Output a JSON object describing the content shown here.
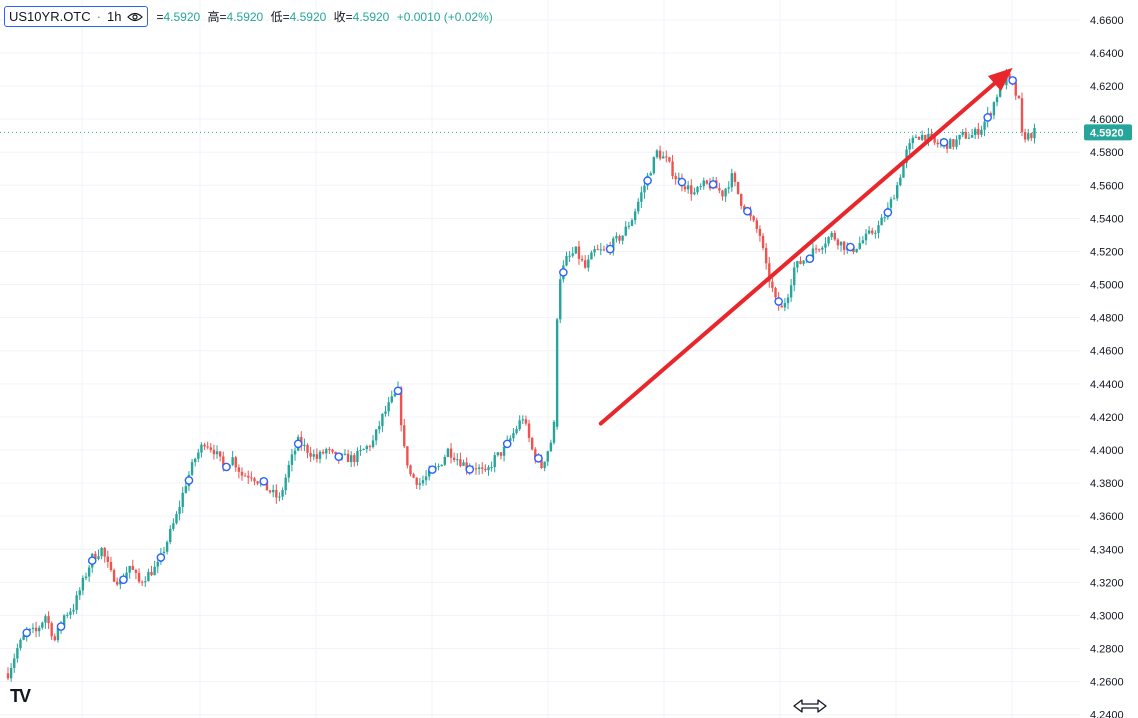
{
  "header": {
    "symbol": "US10YR.OTC",
    "separator": "·",
    "interval": "1h",
    "ohlc": [
      {
        "label": "=",
        "value": "4.5920"
      },
      {
        "label": "高=",
        "value": "4.5920"
      },
      {
        "label": "低=",
        "value": "4.5920"
      },
      {
        "label": "收=",
        "value": "4.5920"
      }
    ],
    "change": "+0.0010 (+0.02%)"
  },
  "colors": {
    "up": "#26a69a",
    "down": "#ef5350",
    "arrow": "#e8262b",
    "marker": "#2962ff",
    "grid": "#f0f3fa"
  },
  "icons": {
    "visibility": "eye-icon",
    "logo": "tradingview-logo-icon",
    "resize": "horizontal-resize-icon"
  },
  "logo_text": "TV",
  "chart_data": {
    "type": "candlestick",
    "title": "",
    "xlabel": "",
    "ylabel": "",
    "ylim": [
      4.238,
      4.672
    ],
    "yticks": [
      "4.6600",
      "4.6400",
      "4.6200",
      "4.6000",
      "4.5800",
      "4.5600",
      "4.5400",
      "4.5200",
      "4.5000",
      "4.4800",
      "4.4600",
      "4.4400",
      "4.4200",
      "4.4000",
      "4.3800",
      "4.3600",
      "4.3400",
      "4.3200",
      "4.3000",
      "4.2800",
      "4.2600",
      "4.2400"
    ],
    "last_price": "4.5920",
    "grid": true,
    "anchors": [
      [
        0,
        4.265
      ],
      [
        3,
        4.28
      ],
      [
        6,
        4.29
      ],
      [
        9,
        4.29
      ],
      [
        12,
        4.3
      ],
      [
        15,
        4.285
      ],
      [
        18,
        4.3
      ],
      [
        21,
        4.305
      ],
      [
        24,
        4.32
      ],
      [
        27,
        4.335
      ],
      [
        30,
        4.34
      ],
      [
        33,
        4.325
      ],
      [
        36,
        4.32
      ],
      [
        39,
        4.33
      ],
      [
        42,
        4.32
      ],
      [
        45,
        4.325
      ],
      [
        48,
        4.33
      ],
      [
        51,
        4.345
      ],
      [
        54,
        4.36
      ],
      [
        57,
        4.38
      ],
      [
        60,
        4.395
      ],
      [
        63,
        4.405
      ],
      [
        66,
        4.4
      ],
      [
        69,
        4.39
      ],
      [
        72,
        4.395
      ],
      [
        75,
        4.385
      ],
      [
        78,
        4.385
      ],
      [
        81,
        4.38
      ],
      [
        84,
        4.375
      ],
      [
        87,
        4.37
      ],
      [
        90,
        4.39
      ],
      [
        93,
        4.405
      ],
      [
        96,
        4.4
      ],
      [
        99,
        4.395
      ],
      [
        102,
        4.4
      ],
      [
        105,
        4.395
      ],
      [
        108,
        4.395
      ],
      [
        111,
        4.395
      ],
      [
        114,
        4.4
      ],
      [
        117,
        4.405
      ],
      [
        120,
        4.42
      ],
      [
        123,
        4.43
      ],
      [
        125,
        4.435
      ],
      [
        127,
        4.4
      ],
      [
        129,
        4.385
      ],
      [
        132,
        4.38
      ],
      [
        135,
        4.385
      ],
      [
        138,
        4.39
      ],
      [
        141,
        4.4
      ],
      [
        144,
        4.395
      ],
      [
        147,
        4.39
      ],
      [
        150,
        4.39
      ],
      [
        153,
        4.385
      ],
      [
        156,
        4.395
      ],
      [
        159,
        4.4
      ],
      [
        162,
        4.41
      ],
      [
        165,
        4.42
      ],
      [
        168,
        4.4
      ],
      [
        171,
        4.39
      ],
      [
        174,
        4.405
      ],
      [
        175,
        4.415
      ],
      [
        176,
        4.5
      ],
      [
        179,
        4.515
      ],
      [
        182,
        4.52
      ],
      [
        185,
        4.51
      ],
      [
        188,
        4.52
      ],
      [
        191,
        4.52
      ],
      [
        194,
        4.525
      ],
      [
        197,
        4.53
      ],
      [
        200,
        4.54
      ],
      [
        203,
        4.555
      ],
      [
        206,
        4.57
      ],
      [
        208,
        4.58
      ],
      [
        211,
        4.575
      ],
      [
        214,
        4.565
      ],
      [
        217,
        4.56
      ],
      [
        220,
        4.555
      ],
      [
        223,
        4.56
      ],
      [
        226,
        4.56
      ],
      [
        229,
        4.555
      ],
      [
        232,
        4.565
      ],
      [
        235,
        4.55
      ],
      [
        238,
        4.54
      ],
      [
        241,
        4.53
      ],
      [
        243,
        4.51
      ],
      [
        246,
        4.49
      ],
      [
        248,
        4.485
      ],
      [
        250,
        4.495
      ],
      [
        252,
        4.51
      ],
      [
        255,
        4.515
      ],
      [
        258,
        4.52
      ],
      [
        261,
        4.525
      ],
      [
        264,
        4.53
      ],
      [
        267,
        4.525
      ],
      [
        270,
        4.52
      ],
      [
        273,
        4.525
      ],
      [
        276,
        4.53
      ],
      [
        279,
        4.535
      ],
      [
        282,
        4.545
      ],
      [
        285,
        4.56
      ],
      [
        288,
        4.58
      ],
      [
        291,
        4.59
      ],
      [
        294,
        4.59
      ],
      [
        297,
        4.585
      ],
      [
        300,
        4.585
      ],
      [
        303,
        4.585
      ],
      [
        306,
        4.59
      ],
      [
        309,
        4.59
      ],
      [
        312,
        4.595
      ],
      [
        315,
        4.605
      ],
      [
        318,
        4.62
      ],
      [
        320,
        4.625
      ],
      [
        322,
        4.62
      ],
      [
        324,
        4.61
      ],
      [
        325,
        4.59
      ],
      [
        327,
        4.59
      ],
      [
        329,
        4.592
      ]
    ],
    "markers": [
      6,
      17,
      27,
      37,
      49,
      58,
      70,
      82,
      93,
      106,
      125,
      136,
      148,
      160,
      170,
      178,
      193,
      205,
      216,
      226,
      237,
      247,
      257,
      270,
      282,
      300,
      314,
      322
    ],
    "annotation": {
      "type": "arrow",
      "from": [
        190,
        4.416
      ],
      "to": [
        322,
        4.631
      ]
    }
  }
}
